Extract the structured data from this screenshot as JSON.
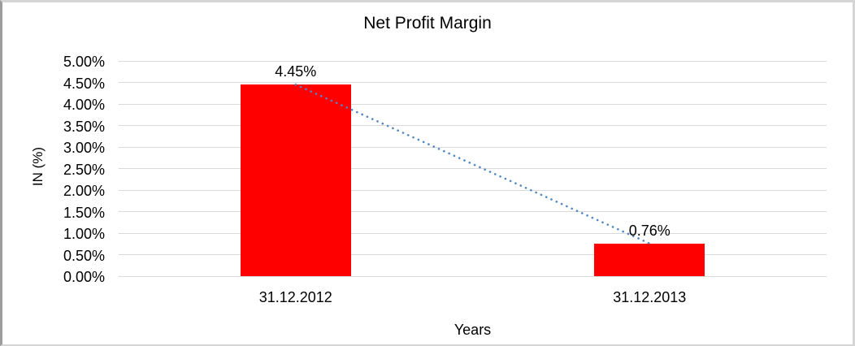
{
  "chart_data": {
    "type": "bar",
    "title": "Net Profit Margin",
    "categories": [
      "31.12.2012",
      "31.12.2013"
    ],
    "values": [
      4.45,
      0.76
    ],
    "data_labels": [
      "4.45%",
      "0.76%"
    ],
    "xlabel": "Years",
    "ylabel": "IN (%)",
    "ylim": [
      0,
      5
    ],
    "y_tick_values": [
      0,
      0.5,
      1,
      1.5,
      2,
      2.5,
      3,
      3.5,
      4,
      4.5,
      5
    ],
    "y_tick_labels": [
      "0.00%",
      "0.50%",
      "1.00%",
      "1.50%",
      "2.00%",
      "2.50%",
      "3.00%",
      "3.50%",
      "4.00%",
      "4.50%",
      "5.00%"
    ],
    "grid": true,
    "legend": "none",
    "trendline": {
      "type": "linear",
      "style": "dotted",
      "connects": [
        "4.45%",
        "0.76%"
      ]
    },
    "colors": {
      "bar": "#ff0000",
      "trendline": "#4f87c5",
      "gridline": "#d9d9d9",
      "text": "#000000",
      "background": "#ffffff"
    }
  }
}
